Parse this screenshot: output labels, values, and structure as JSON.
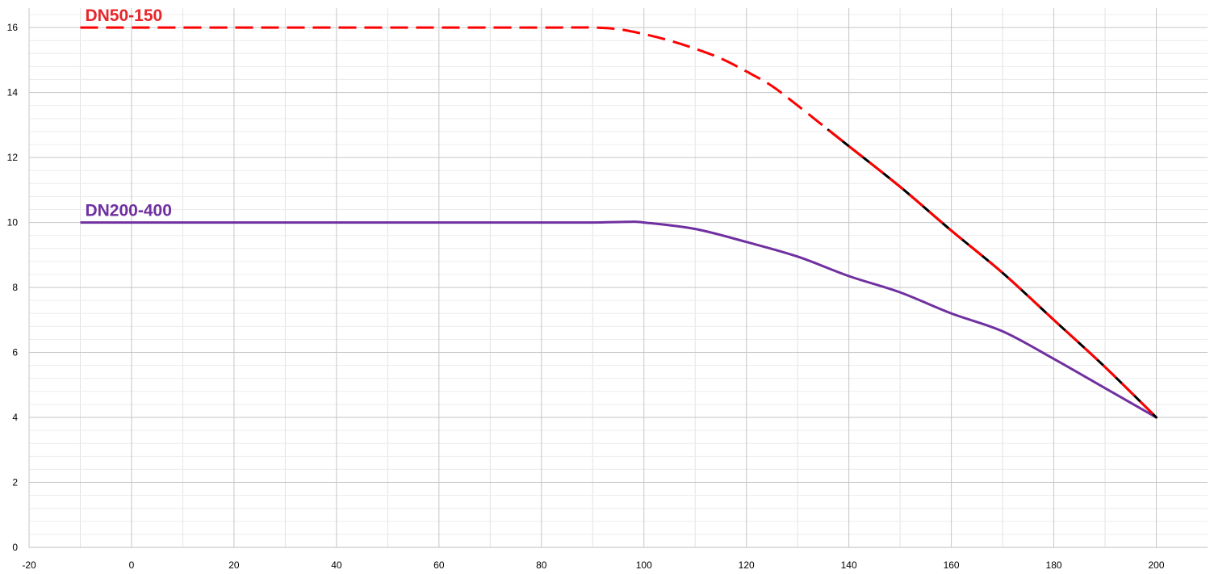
{
  "chart_data": {
    "type": "line",
    "title": "",
    "xlabel": "",
    "ylabel": "",
    "xlim": [
      -20,
      210
    ],
    "ylim": [
      0,
      16.6
    ],
    "x_ticks": [
      -20,
      0,
      20,
      40,
      60,
      80,
      100,
      120,
      140,
      160,
      180,
      200
    ],
    "y_ticks": [
      0,
      2,
      4,
      6,
      8,
      10,
      12,
      14,
      16
    ],
    "grid": {
      "major": true,
      "minor": true
    },
    "series": [
      {
        "name": "DN50-150",
        "color": "#ff0000",
        "line_style": "dashed",
        "overlay_color": "#000000",
        "overlay_from_x": 136,
        "points": [
          [
            -10,
            16
          ],
          [
            0,
            16
          ],
          [
            20,
            16
          ],
          [
            40,
            16
          ],
          [
            60,
            16
          ],
          [
            80,
            16
          ],
          [
            90,
            16
          ],
          [
            95,
            15.95
          ],
          [
            100,
            15.8
          ],
          [
            105,
            15.6
          ],
          [
            110,
            15.35
          ],
          [
            115,
            15.05
          ],
          [
            120,
            14.65
          ],
          [
            125,
            14.2
          ],
          [
            130,
            13.6
          ],
          [
            136,
            12.85
          ],
          [
            140,
            12.35
          ],
          [
            150,
            11.1
          ],
          [
            160,
            9.75
          ],
          [
            170,
            8.45
          ],
          [
            180,
            7.0
          ],
          [
            190,
            5.55
          ],
          [
            200,
            4.0
          ]
        ]
      },
      {
        "name": "DN200-400",
        "color": "#7030a0",
        "line_style": "solid",
        "points": [
          [
            -10,
            10
          ],
          [
            0,
            10
          ],
          [
            20,
            10
          ],
          [
            40,
            10
          ],
          [
            60,
            10
          ],
          [
            80,
            10
          ],
          [
            90,
            10
          ],
          [
            97,
            10.02
          ],
          [
            100,
            10.0
          ],
          [
            110,
            9.8
          ],
          [
            120,
            9.4
          ],
          [
            130,
            8.95
          ],
          [
            140,
            8.35
          ],
          [
            150,
            7.85
          ],
          [
            160,
            7.2
          ],
          [
            170,
            6.65
          ],
          [
            180,
            5.8
          ],
          [
            190,
            4.9
          ],
          [
            200,
            4.0
          ]
        ]
      }
    ],
    "labels": [
      {
        "text": "DN50-150",
        "color": "#e8262b",
        "at_x": -10,
        "at_y": 16
      },
      {
        "text": "DN200-400",
        "color": "#7030a0",
        "at_x": -10,
        "at_y": 10
      }
    ]
  }
}
